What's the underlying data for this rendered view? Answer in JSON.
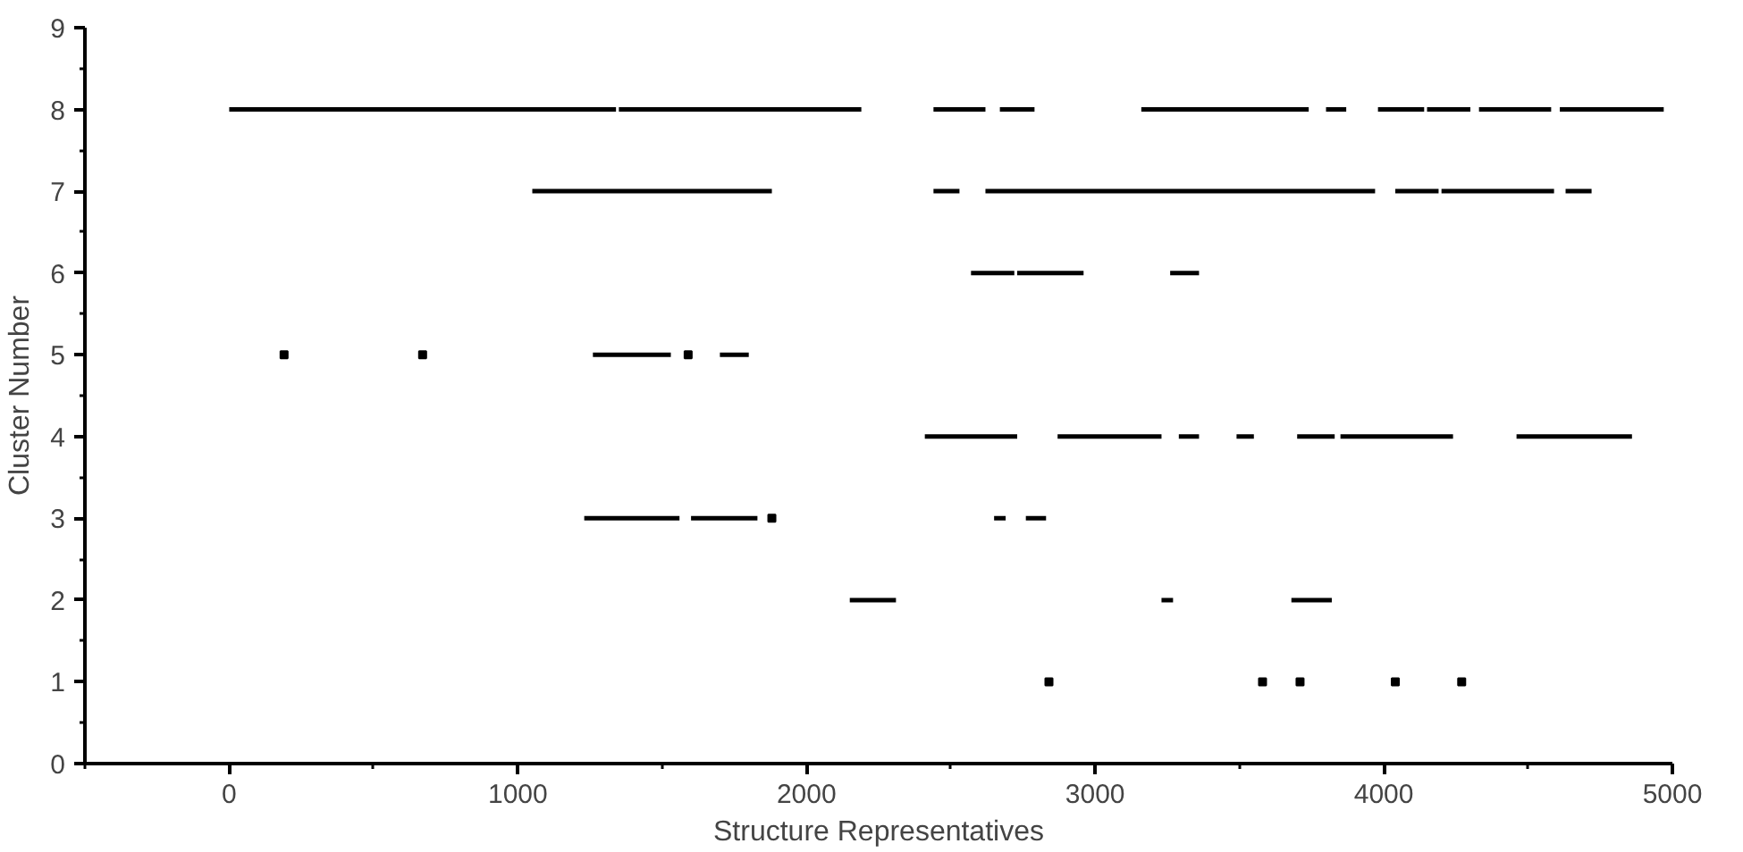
{
  "chart_data": {
    "type": "line",
    "xlabel": "Structure Representatives",
    "ylabel": "Cluster Number",
    "xlim": [
      -500,
      5000
    ],
    "ylim": [
      0,
      9
    ],
    "xticks": [
      {
        "value": -500,
        "label": null
      },
      0,
      {
        "value": 500,
        "label": null
      },
      1000,
      {
        "value": 1500,
        "label": null
      },
      2000,
      {
        "value": 2500,
        "label": null
      },
      3000,
      {
        "value": 3500,
        "label": null
      },
      4000,
      {
        "value": 4500,
        "label": null
      },
      5000
    ],
    "yticks": [
      0,
      {
        "value": 0.5,
        "label": null
      },
      1,
      {
        "value": 1.5,
        "label": null
      },
      2,
      {
        "value": 2.5,
        "label": null
      },
      3,
      {
        "value": 3.5,
        "label": null
      },
      4,
      {
        "value": 4.5,
        "label": null
      },
      5,
      {
        "value": 5.5,
        "label": null
      },
      6,
      {
        "value": 6.5,
        "label": null
      },
      7,
      {
        "value": 7.5,
        "label": null
      },
      8,
      {
        "value": 8.5,
        "label": null
      },
      9
    ],
    "grid": false,
    "marker": "none",
    "line_style": "solid",
    "series": [
      {
        "color": "#000000",
        "x": [
          0,
          1340,
          1345,
          1350,
          2190,
          2315,
          2440,
          2620,
          2645,
          2670,
          2790,
          2975,
          3160,
          3740,
          3770,
          3800,
          3870,
          3925,
          3980,
          4140,
          4145,
          4150,
          4300,
          4315,
          4330,
          4580,
          4595,
          4610,
          4970
        ],
        "values": [
          8,
          8,
          null,
          8,
          8,
          null,
          8,
          8,
          null,
          8,
          8,
          null,
          8,
          8,
          null,
          8,
          8,
          null,
          8,
          8,
          null,
          8,
          8,
          null,
          8,
          8,
          null,
          8,
          8
        ]
      },
      {
        "color": "#000000",
        "x": [
          1050,
          1880,
          2160,
          2440,
          2530,
          2575,
          2620,
          3970,
          4005,
          4040,
          4190,
          4195,
          4200,
          4590,
          4610,
          4630,
          4720
        ],
        "values": [
          7,
          7,
          null,
          7,
          7,
          null,
          7,
          7,
          null,
          7,
          7,
          null,
          7,
          7,
          null,
          7,
          7
        ]
      },
      {
        "color": "#000000",
        "x": [
          2570,
          2720,
          2725,
          2730,
          2960,
          3110,
          3260,
          3360
        ],
        "values": [
          6,
          6,
          null,
          6,
          6,
          null,
          6,
          6
        ]
      },
      {
        "color": "#000000",
        "x": [
          1260,
          1530,
          1615,
          1700,
          1800
        ],
        "values": [
          5,
          5,
          null,
          5,
          5
        ]
      },
      {
        "color": "#000000",
        "x": [
          2410,
          2730,
          2800,
          2870,
          3230,
          3260,
          3290,
          3360,
          3425,
          3490,
          3550,
          3625,
          3700,
          3830,
          3840,
          3850,
          4240,
          4350,
          4460,
          4860
        ],
        "values": [
          4,
          4,
          null,
          4,
          4,
          null,
          4,
          4,
          null,
          4,
          4,
          null,
          4,
          4,
          null,
          4,
          4,
          null,
          4,
          4
        ]
      },
      {
        "color": "#000000",
        "x": [
          1230,
          1560,
          1580,
          1600,
          1830,
          2240,
          2650,
          2690,
          2725,
          2760,
          2830
        ],
        "values": [
          3,
          3,
          null,
          3,
          3,
          null,
          3,
          3,
          null,
          3,
          3
        ]
      },
      {
        "color": "#000000",
        "x": [
          2150,
          2310,
          2770,
          3230,
          3270,
          3475,
          3680,
          3820
        ],
        "values": [
          2,
          2,
          null,
          2,
          2,
          null,
          2,
          2
        ]
      },
      {
        "type": "scatter",
        "marker": "square",
        "color": "#000000",
        "x": [
          190,
          670,
          1590,
          1880,
          2840,
          3580,
          3710,
          4040,
          4270
        ],
        "values": [
          5,
          5,
          5,
          3,
          1,
          1,
          1,
          1,
          1
        ]
      }
    ]
  }
}
